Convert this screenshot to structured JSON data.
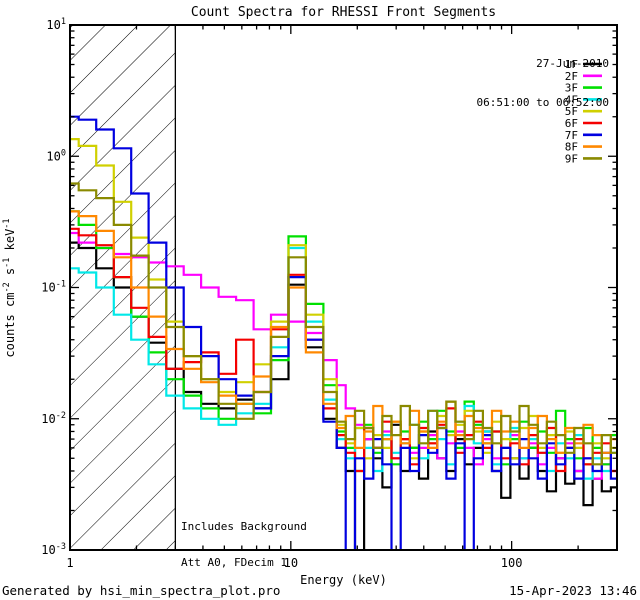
{
  "title": "Count Spectra for RHESSI Front Segments",
  "header": {
    "date": "27-Jun-2010",
    "time_range": "06:51:00 to 06:52:00"
  },
  "annotations": {
    "line1": "Includes Background",
    "line2": "Att A0, FDecim 1"
  },
  "footer": {
    "left": "Generated by hsi_min_spectra_plot.pro",
    "right": "15-Apr-2023 13:46"
  },
  "legend": {
    "entries": [
      {
        "label": "1F",
        "color": "#000000"
      },
      {
        "label": "2F",
        "color": "#ff00ff"
      },
      {
        "label": "3F",
        "color": "#00e000"
      },
      {
        "label": "4F",
        "color": "#00e8e8"
      },
      {
        "label": "5F",
        "color": "#d0d000"
      },
      {
        "label": "6F",
        "color": "#f40000"
      },
      {
        "label": "7F",
        "color": "#0000e0"
      },
      {
        "label": "8F",
        "color": "#ff8800"
      },
      {
        "label": "9F",
        "color": "#8a8a00"
      }
    ]
  },
  "chart_data": {
    "type": "line",
    "mode": "step-histogram",
    "x_scale": "log",
    "y_scale": "log",
    "xlabel": "Energy (keV)",
    "ylabel_segments": [
      {
        "text": "counts cm"
      },
      {
        "text": "-2",
        "sup": true
      },
      {
        "text": " s"
      },
      {
        "text": "-1",
        "sup": true
      },
      {
        "text": " keV"
      },
      {
        "text": "-1",
        "sup": true
      }
    ],
    "xlim": [
      1,
      300
    ],
    "ylim": [
      0.001,
      10
    ],
    "x_major_ticks": [
      {
        "value": 1,
        "label": "1"
      },
      {
        "value": 10,
        "label": "10"
      },
      {
        "value": 100,
        "label": "100"
      }
    ],
    "y_major_ticks": [
      {
        "value": 10,
        "base": "10",
        "exp": "1"
      },
      {
        "value": 1,
        "base": "10",
        "exp": "0"
      },
      {
        "value": 0.1,
        "base": "10",
        "exp": "-1"
      },
      {
        "value": 0.01,
        "base": "10",
        "exp": "-2"
      },
      {
        "value": 0.001,
        "base": "10",
        "exp": "-3"
      }
    ],
    "hatch_region": {
      "x_min": 1.0,
      "x_max": 3.0
    },
    "grid": false,
    "legend_position": "top-right-inside",
    "energies": [
      1.0,
      1.2,
      1.44,
      1.73,
      2.07,
      2.49,
      2.99,
      3.58,
      4.3,
      5.16,
      6.19,
      7.43,
      8.91,
      10.7,
      12.8,
      15.4,
      16.9,
      18.6,
      20.5,
      22.5,
      24.8,
      27.2,
      30.0,
      33.0,
      36.3,
      39.9,
      43.9,
      48.3,
      53.1,
      58.4,
      64.2,
      70.7,
      77.7,
      85.5,
      94.1,
      103.5,
      113.8,
      125.2,
      137.7,
      151.5,
      166.6,
      183.3,
      201.6,
      221.8,
      244.0,
      268.4,
      295.2
    ],
    "series": [
      {
        "name": "1F",
        "color": "#000000",
        "values": [
          0.22,
          0.2,
          0.14,
          0.1,
          0.06,
          0.038,
          0.024,
          0.016,
          0.013,
          0.012,
          0.014,
          0.012,
          0.02,
          0.105,
          0.035,
          0.01,
          0.006,
          0.004,
          0.0008,
          0.007,
          0.005,
          0.003,
          0.009,
          0.004,
          0.006,
          0.0035,
          0.008,
          0.005,
          0.004,
          0.007,
          0.0045,
          0.006,
          0.008,
          0.004,
          0.0025,
          0.005,
          0.0035,
          0.006,
          0.004,
          0.0028,
          0.005,
          0.0032,
          0.004,
          0.0022,
          0.0035,
          0.0028,
          0.003
        ]
      },
      {
        "name": "2F",
        "color": "#ff00ff",
        "values": [
          0.26,
          0.22,
          0.2,
          0.18,
          0.17,
          0.155,
          0.145,
          0.125,
          0.1,
          0.085,
          0.08,
          0.048,
          0.062,
          0.055,
          0.045,
          0.028,
          0.018,
          0.012,
          0.009,
          0.007,
          0.006,
          0.008,
          0.005,
          0.007,
          0.0055,
          0.006,
          0.0075,
          0.005,
          0.0065,
          0.008,
          0.006,
          0.0045,
          0.007,
          0.005,
          0.006,
          0.0075,
          0.005,
          0.0065,
          0.0045,
          0.006,
          0.005,
          0.0065,
          0.004,
          0.005,
          0.0035,
          0.0045,
          0.004
        ]
      },
      {
        "name": "3F",
        "color": "#00e000",
        "values": [
          0.38,
          0.3,
          0.2,
          0.12,
          0.06,
          0.032,
          0.02,
          0.015,
          0.012,
          0.01,
          0.013,
          0.011,
          0.028,
          0.245,
          0.075,
          0.018,
          0.008,
          0.006,
          0.004,
          0.009,
          0.0055,
          0.007,
          0.0045,
          0.008,
          0.006,
          0.0095,
          0.007,
          0.0115,
          0.008,
          0.006,
          0.0135,
          0.009,
          0.0065,
          0.008,
          0.0045,
          0.007,
          0.0095,
          0.006,
          0.008,
          0.0055,
          0.0115,
          0.007,
          0.005,
          0.0085,
          0.006,
          0.0045,
          0.0075
        ]
      },
      {
        "name": "4F",
        "color": "#00e8e8",
        "values": [
          0.14,
          0.13,
          0.1,
          0.062,
          0.04,
          0.026,
          0.015,
          0.012,
          0.01,
          0.009,
          0.011,
          0.013,
          0.035,
          0.2,
          0.055,
          0.014,
          0.007,
          0.005,
          0.0085,
          0.006,
          0.004,
          0.0075,
          0.0055,
          0.0065,
          0.009,
          0.005,
          0.0115,
          0.007,
          0.0045,
          0.0095,
          0.0125,
          0.0065,
          0.008,
          0.0045,
          0.006,
          0.0085,
          0.005,
          0.007,
          0.0055,
          0.004,
          0.0065,
          0.005,
          0.0075,
          0.0035,
          0.005,
          0.004,
          0.0055
        ]
      },
      {
        "name": "5F",
        "color": "#d0d000",
        "values": [
          1.35,
          1.2,
          0.85,
          0.45,
          0.24,
          0.115,
          0.055,
          0.03,
          0.02,
          0.016,
          0.019,
          0.026,
          0.055,
          0.21,
          0.062,
          0.02,
          0.009,
          0.0065,
          0.0085,
          0.005,
          0.0075,
          0.006,
          0.0095,
          0.007,
          0.005,
          0.008,
          0.0065,
          0.0105,
          0.0075,
          0.009,
          0.0115,
          0.008,
          0.0055,
          0.0095,
          0.007,
          0.005,
          0.0085,
          0.0105,
          0.006,
          0.0075,
          0.0055,
          0.008,
          0.006,
          0.0045,
          0.0065,
          0.005,
          0.006
        ]
      },
      {
        "name": "6F",
        "color": "#f40000",
        "values": [
          0.28,
          0.25,
          0.21,
          0.12,
          0.07,
          0.042,
          0.024,
          0.027,
          0.032,
          0.022,
          0.04,
          0.016,
          0.048,
          0.125,
          0.04,
          0.012,
          0.0075,
          0.0055,
          0.004,
          0.0085,
          0.006,
          0.0095,
          0.005,
          0.007,
          0.0045,
          0.0085,
          0.0065,
          0.009,
          0.012,
          0.0055,
          0.0075,
          0.0095,
          0.006,
          0.008,
          0.005,
          0.0065,
          0.0045,
          0.0075,
          0.0055,
          0.0085,
          0.004,
          0.006,
          0.007,
          0.0045,
          0.0055,
          0.0065,
          0.004
        ]
      },
      {
        "name": "7F",
        "color": "#0000e0",
        "values": [
          2.0,
          1.9,
          1.6,
          1.15,
          0.52,
          0.22,
          0.1,
          0.05,
          0.03,
          0.02,
          0.015,
          0.012,
          0.03,
          0.12,
          0.04,
          0.0095,
          0.006,
          0.0008,
          0.005,
          0.0035,
          0.007,
          0.0045,
          0.0008,
          0.006,
          0.004,
          0.0075,
          0.0055,
          0.0085,
          0.0035,
          0.0065,
          0.0008,
          0.005,
          0.0075,
          0.004,
          0.006,
          0.0045,
          0.007,
          0.005,
          0.0035,
          0.0065,
          0.0045,
          0.006,
          0.0035,
          0.005,
          0.004,
          0.0055,
          0.0035
        ]
      },
      {
        "name": "8F",
        "color": "#ff8800",
        "values": [
          0.38,
          0.35,
          0.27,
          0.17,
          0.1,
          0.06,
          0.034,
          0.024,
          0.019,
          0.015,
          0.013,
          0.021,
          0.05,
          0.1,
          0.032,
          0.013,
          0.0085,
          0.0105,
          0.006,
          0.008,
          0.0125,
          0.007,
          0.0095,
          0.0065,
          0.0115,
          0.008,
          0.006,
          0.0095,
          0.0135,
          0.0075,
          0.0105,
          0.0085,
          0.0065,
          0.0115,
          0.008,
          0.0095,
          0.006,
          0.0085,
          0.0105,
          0.007,
          0.0055,
          0.0085,
          0.0065,
          0.009,
          0.0075,
          0.0055,
          0.007
        ]
      },
      {
        "name": "9F",
        "color": "#8a8a00",
        "values": [
          0.62,
          0.55,
          0.48,
          0.3,
          0.175,
          0.1,
          0.05,
          0.03,
          0.02,
          0.013,
          0.01,
          0.016,
          0.042,
          0.17,
          0.05,
          0.016,
          0.0095,
          0.007,
          0.0115,
          0.0085,
          0.006,
          0.0105,
          0.0075,
          0.0125,
          0.009,
          0.0065,
          0.0115,
          0.0085,
          0.0135,
          0.0095,
          0.007,
          0.0115,
          0.0085,
          0.0065,
          0.0105,
          0.008,
          0.0125,
          0.009,
          0.0065,
          0.0095,
          0.0075,
          0.0055,
          0.0085,
          0.0065,
          0.0045,
          0.0075,
          0.0055
        ]
      }
    ]
  }
}
